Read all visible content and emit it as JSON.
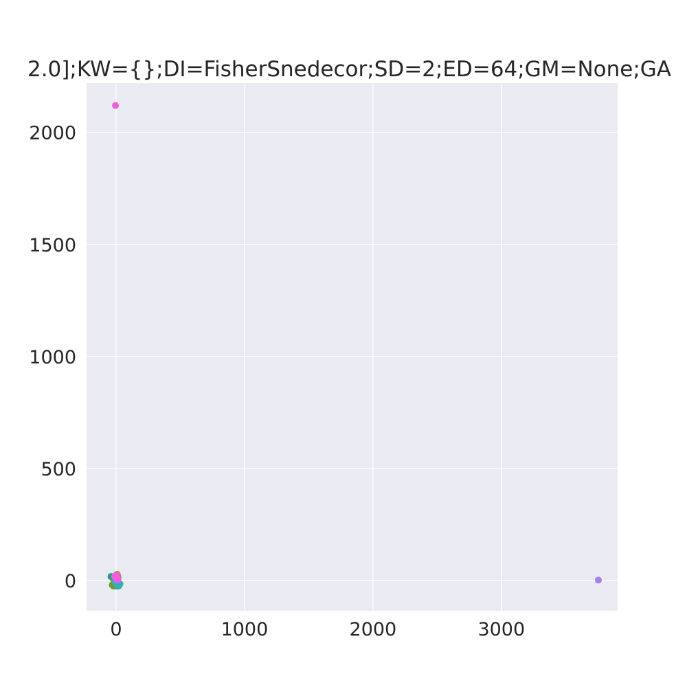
{
  "chart_data": {
    "type": "scatter",
    "title": "2.0];KW={};DI=FisherSnedecor;SD=2;ED=64;GM=None;GA",
    "xlabel": "",
    "ylabel": "",
    "xlim": [
      -230,
      3905
    ],
    "ylim": [
      -135,
      2220
    ],
    "grid": true,
    "background": "#eaeaf2",
    "grid_color": "#ffffff",
    "x_ticks": [
      0,
      1000,
      2000,
      3000
    ],
    "y_ticks": [
      0,
      500,
      1000,
      1500,
      2000
    ],
    "x_tick_labels": [
      "0",
      "1000",
      "2000",
      "3000"
    ],
    "y_tick_labels": [
      "0",
      "500",
      "1000",
      "1500",
      "2000"
    ],
    "series": [
      {
        "color": "#1f9e89",
        "points": [
          [
            -40,
            18
          ],
          [
            -25,
            10
          ],
          [
            -10,
            5
          ],
          [
            0,
            -15
          ],
          [
            5,
            -25
          ],
          [
            15,
            12
          ],
          [
            -5,
            20
          ]
        ]
      },
      {
        "color": "#c48a2a",
        "points": [
          [
            8,
            28
          ],
          [
            12,
            22
          ],
          [
            5,
            15
          ],
          [
            -3,
            8
          ],
          [
            10,
            0
          ]
        ]
      },
      {
        "color": "#6b9e2d",
        "points": [
          [
            -30,
            -20
          ],
          [
            -20,
            -25
          ],
          [
            -12,
            -18
          ],
          [
            -5,
            -8
          ],
          [
            -15,
            0
          ]
        ]
      },
      {
        "color": "#2cb5a8",
        "points": [
          [
            10,
            -20
          ],
          [
            20,
            -25
          ],
          [
            15,
            -12
          ],
          [
            25,
            -18
          ],
          [
            30,
            -15
          ],
          [
            8,
            -5
          ]
        ]
      },
      {
        "color": "#36a8d8",
        "points": [
          [
            -8,
            -5
          ],
          [
            0,
            2
          ],
          [
            5,
            -10
          ],
          [
            12,
            5
          ],
          [
            3,
            12
          ]
        ]
      },
      {
        "color": "#a87ff0",
        "points": [
          [
            3755,
            2
          ],
          [
            -5,
            15
          ],
          [
            2,
            25
          ],
          [
            8,
            10
          ]
        ]
      },
      {
        "color": "#ee5fd8",
        "points": [
          [
            -5,
            2120
          ],
          [
            -12,
            18
          ],
          [
            5,
            5
          ],
          [
            10,
            12
          ],
          [
            0,
            22
          ],
          [
            14,
            2
          ]
        ]
      }
    ]
  }
}
